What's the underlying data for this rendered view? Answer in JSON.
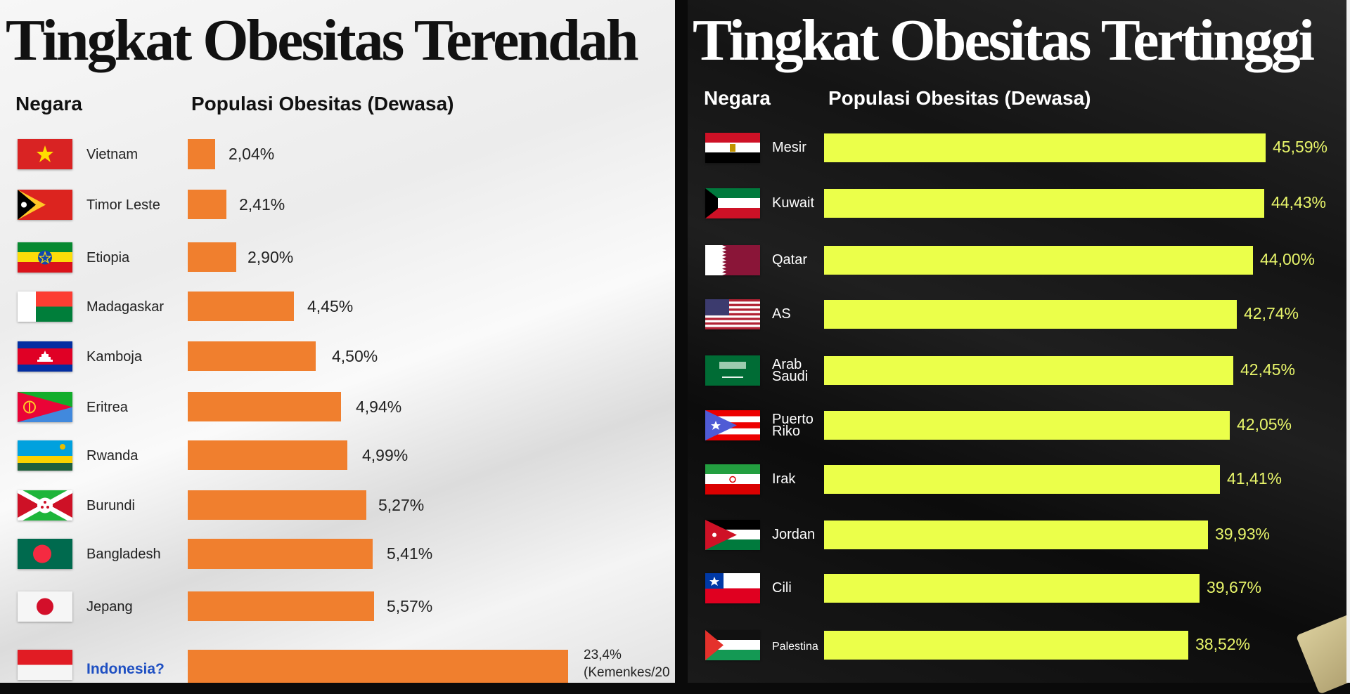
{
  "chart_data": [
    {
      "type": "bar",
      "orientation": "horizontal",
      "title": "Tingkat Obesitas Terendah",
      "xlabel": "Populasi Obesitas (Dewasa)",
      "ylabel": "Negara",
      "categories": [
        "Vietnam",
        "Timor Leste",
        "Etiopia",
        "Madagaskar",
        "Kamboja",
        "Eritrea",
        "Rwanda",
        "Burundi",
        "Bangladesh",
        "Jepang",
        "Indonesia?"
      ],
      "values": [
        2.04,
        2.41,
        2.9,
        4.45,
        4.5,
        4.94,
        4.99,
        5.27,
        5.41,
        5.57,
        23.4
      ],
      "unit": "%",
      "color": "#f07f2e",
      "annotations": [
        "23,4% (Kemenkes/20..."
      ]
    },
    {
      "type": "bar",
      "orientation": "horizontal",
      "title": "Tingkat Obesitas Tertinggi",
      "xlabel": "Populasi Obesitas (Dewasa)",
      "ylabel": "Negara",
      "categories": [
        "Mesir",
        "Kuwait",
        "Qatar",
        "AS",
        "Arab Saudi",
        "Puerto Riko",
        "Irak",
        "Jordan",
        "Cili",
        "Palestina"
      ],
      "values": [
        45.59,
        44.43,
        44.0,
        42.74,
        42.45,
        42.05,
        41.41,
        39.93,
        39.67,
        38.52
      ],
      "unit": "%",
      "color": "#ebff4a"
    }
  ],
  "left": {
    "title": "Tingkat Obesitas Terendah",
    "col_country": "Negara",
    "col_value": "Populasi Obesitas (Dewasa)",
    "rows": [
      {
        "name": "Vietnam",
        "value": "2,04%",
        "flag": "vietnam"
      },
      {
        "name": "Timor Leste",
        "value": "2,41%",
        "flag": "timor-leste"
      },
      {
        "name": "Etiopia",
        "value": "2,90%",
        "flag": "ethiopia"
      },
      {
        "name": "Madagaskar",
        "value": "4,45%",
        "flag": "madagascar"
      },
      {
        "name": "Kamboja",
        "value": "4,50%",
        "flag": "cambodia"
      },
      {
        "name": "Eritrea",
        "value": "4,94%",
        "flag": "eritrea"
      },
      {
        "name": "Rwanda",
        "value": "4,99%",
        "flag": "rwanda"
      },
      {
        "name": "Burundi",
        "value": "5,27%",
        "flag": "burundi"
      },
      {
        "name": "Bangladesh",
        "value": "5,41%",
        "flag": "bangladesh"
      },
      {
        "name": "Jepang",
        "value": "5,57%",
        "flag": "japan"
      },
      {
        "name": "Indonesia?",
        "value": "23,4%",
        "value2": "(Kemenkes/20",
        "flag": "indonesia",
        "highlight": "#1e4fc2"
      }
    ]
  },
  "right": {
    "title": "Tingkat Obesitas Tertinggi",
    "col_country": "Negara",
    "col_value": "Populasi Obesitas (Dewasa)",
    "rows": [
      {
        "name": "Mesir",
        "value": "45,59%",
        "flag": "egypt"
      },
      {
        "name": "Kuwait",
        "value": "44,43%",
        "flag": "kuwait"
      },
      {
        "name": "Qatar",
        "value": "44,00%",
        "flag": "qatar"
      },
      {
        "name": "AS",
        "value": "42,74%",
        "flag": "usa"
      },
      {
        "name": "Arab\nSaudi",
        "value": "42,45%",
        "flag": "saudi-arabia"
      },
      {
        "name": "Puerto\nRiko",
        "value": "42,05%",
        "flag": "puerto-rico"
      },
      {
        "name": "Irak",
        "value": "41,41%",
        "flag": "iran"
      },
      {
        "name": "Jordan",
        "value": "39,93%",
        "flag": "jordan"
      },
      {
        "name": "Cili",
        "value": "39,67%",
        "flag": "chile"
      },
      {
        "name": "Palestina",
        "value": "38,52%",
        "flag": "palestine"
      }
    ]
  }
}
